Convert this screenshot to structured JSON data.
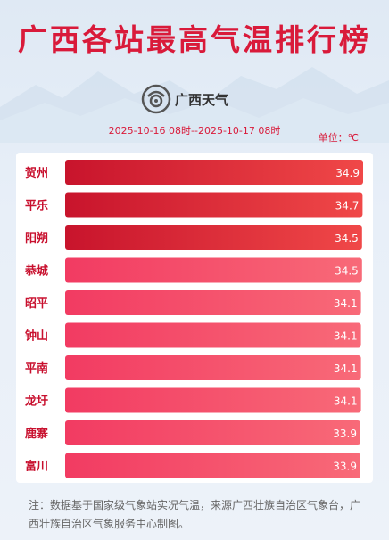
{
  "header": {
    "title": "广西各站最高气温排行榜",
    "brand": "广西天气",
    "date_range": "2025-10-16 08时--2025-10-17 08时",
    "unit": "单位：℃"
  },
  "colors": {
    "dark_bar": "#c8142c",
    "bar_end": "#f04848",
    "light_bar": "#f23b62",
    "light_bar_end": "#f86a78",
    "title": "#d91a3a",
    "label": "#c8102e"
  },
  "chart_data": {
    "type": "bar",
    "orientation": "horizontal",
    "categories": [
      "贺州",
      "平乐",
      "阳朔",
      "恭城",
      "昭平",
      "钟山",
      "平南",
      "龙圩",
      "鹿寨",
      "富川"
    ],
    "values": [
      34.9,
      34.7,
      34.5,
      34.5,
      34.1,
      34.1,
      34.1,
      34.1,
      33.9,
      33.9
    ],
    "value_labels": [
      "34.9",
      "34.7",
      "34.5",
      "34.5",
      "34.1",
      "34.1",
      "34.1",
      "34.1",
      "33.9",
      "33.9"
    ],
    "ylabel": "",
    "xlabel": ""
  },
  "footer": {
    "note": "注：数据基于国家级气象站实况气温，来源广西壮族自治区气象台，广西壮族自治区气象服务中心制图。"
  }
}
